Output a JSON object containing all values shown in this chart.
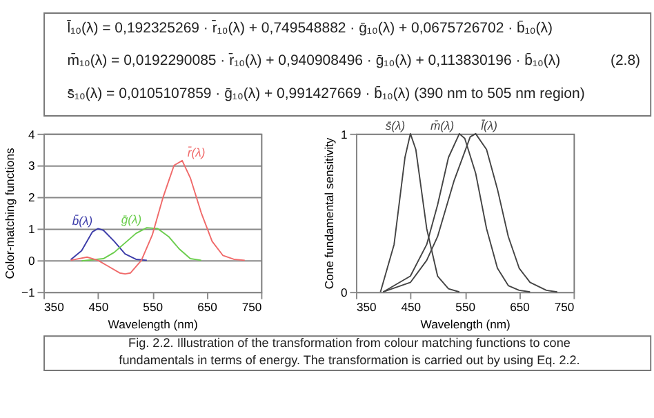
{
  "chart_data": [
    {
      "type": "line",
      "xlabel": "Wavelength  (nm)",
      "ylabel": "Color-matching functions",
      "xlim": [
        350,
        750
      ],
      "xticks": [
        350,
        450,
        550,
        650,
        750
      ],
      "ylim": [
        -1,
        4
      ],
      "yticks": [
        -1,
        0,
        1,
        2,
        3,
        4
      ],
      "grid": "y",
      "marker": "none",
      "line_style": "solid",
      "annotations": [
        "l̄₁₀(λ) = 0,192325269 · r̄₁₀(λ) + 0,749548882 · ḡ₁₀(λ) + 0,0675726702 · b̄₁₀(λ)",
        "m̄₁₀(λ) = 0,0192290085 · r̄₁₀(λ) + 0,940908496 · ḡ₁₀(λ) + 0,113830196 · b̄₁₀(λ)",
        "s̄₁₀(λ) = 0,0105107859 · ḡ₁₀(λ) + 0,991427669 · b̄₁₀(λ) (390 nm to 505 nm region)",
        "(2.8)"
      ],
      "series": [
        {
          "name": "b̄(λ)",
          "color": "#3b3ba8",
          "x": [
            400,
            420,
            440,
            450,
            460,
            480,
            500,
            520,
            540
          ],
          "values": [
            0.02,
            0.3,
            0.9,
            1.0,
            0.95,
            0.6,
            0.2,
            0.03,
            0
          ]
        },
        {
          "name": "ḡ(λ)",
          "color": "#6acd4c",
          "x": [
            420,
            460,
            480,
            500,
            520,
            540,
            560,
            580,
            600,
            620,
            640
          ],
          "values": [
            -0.02,
            0.05,
            0.25,
            0.55,
            0.85,
            1.03,
            1.0,
            0.75,
            0.35,
            0.05,
            0
          ]
        },
        {
          "name": "r̄(λ)",
          "color": "#f06a6a",
          "x": [
            400,
            430,
            450,
            470,
            490,
            500,
            510,
            530,
            550,
            570,
            590,
            605,
            620,
            640,
            660,
            680,
            700,
            720
          ],
          "values": [
            0,
            0.1,
            0,
            -0.2,
            -0.4,
            -0.43,
            -0.4,
            0,
            0.8,
            2.0,
            3.0,
            3.15,
            2.6,
            1.5,
            0.6,
            0.15,
            0.03,
            0
          ]
        }
      ]
    },
    {
      "type": "line",
      "xlabel": "Wavelength  (nm)",
      "ylabel": "Cone fundamental sensitivity",
      "xlim": [
        350,
        750
      ],
      "xticks": [
        350,
        450,
        550,
        650,
        750
      ],
      "ylim": [
        0,
        1
      ],
      "yticks": [
        0,
        1
      ],
      "grid": false,
      "marker": "none",
      "line_style": "solid",
      "annotations": [
        "Fig. 2.2. Illustration of the transformation from colour matching functions to cone",
        "fundamentals in terms of energy. The transformation is carried out by using Eq. 2.2."
      ],
      "series": [
        {
          "name": "s̄(λ)",
          "color": "#444444",
          "x": [
            395,
            420,
            440,
            450,
            460,
            480,
            500,
            520,
            540
          ],
          "values": [
            0,
            0.3,
            0.85,
            1.0,
            0.9,
            0.4,
            0.1,
            0.02,
            0
          ]
        },
        {
          "name": "m̄(λ)",
          "color": "#444444",
          "x": [
            400,
            450,
            480,
            500,
            520,
            540,
            550,
            570,
            590,
            610,
            630,
            650,
            670
          ],
          "values": [
            0,
            0.1,
            0.3,
            0.55,
            0.85,
            1.0,
            0.97,
            0.75,
            0.4,
            0.15,
            0.04,
            0.01,
            0
          ]
        },
        {
          "name": "l̄(λ)",
          "color": "#444444",
          "x": [
            400,
            450,
            480,
            500,
            530,
            560,
            570,
            590,
            610,
            630,
            650,
            670,
            700,
            720
          ],
          "values": [
            0,
            0.06,
            0.2,
            0.35,
            0.7,
            0.98,
            1.0,
            0.9,
            0.65,
            0.35,
            0.15,
            0.06,
            0.01,
            0
          ]
        }
      ]
    }
  ]
}
